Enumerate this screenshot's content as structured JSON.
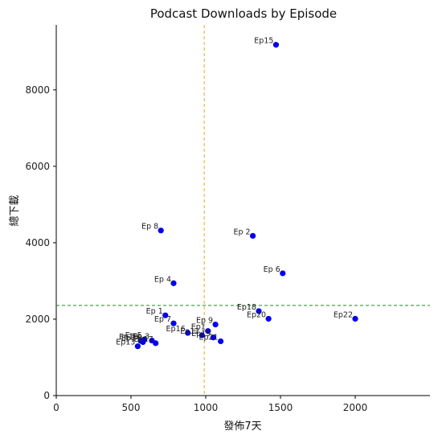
{
  "chart_data": {
    "type": "scatter",
    "title": "Podcast Downloads by Episode",
    "xlabel": "發佈7天",
    "ylabel": "總下載",
    "xlim": [
      0,
      2500
    ],
    "ylim": [
      0,
      9700
    ],
    "xticks": [
      0,
      500,
      1000,
      1500,
      2000
    ],
    "yticks": [
      0,
      2000,
      4000,
      6000,
      8000
    ],
    "marker_color": "#0000ee",
    "vline": {
      "x": 990,
      "color": "#f0a020",
      "style": "dashed"
    },
    "hline": {
      "y": 2360,
      "color": "#228B22",
      "style": "dashed"
    },
    "points": [
      {
        "label": "Ep15",
        "x": 1470,
        "y": 9180
      },
      {
        "label": "Ep 8",
        "x": 700,
        "y": 4320
      },
      {
        "label": "Ep 2",
        "x": 1315,
        "y": 4180
      },
      {
        "label": "Ep 6",
        "x": 1515,
        "y": 3200
      },
      {
        "label": "Ep 4",
        "x": 785,
        "y": 2940
      },
      {
        "label": "Ep18",
        "x": 1355,
        "y": 2210
      },
      {
        "label": "Ep 1",
        "x": 730,
        "y": 2100
      },
      {
        "label": "Ep20",
        "x": 1420,
        "y": 2010
      },
      {
        "label": "Ep22",
        "x": 2000,
        "y": 2010
      },
      {
        "label": "Ep 7",
        "x": 785,
        "y": 1890
      },
      {
        "label": "Ep 9",
        "x": 1065,
        "y": 1860
      },
      {
        "label": "Ep1",
        "x": 1015,
        "y": 1690
      },
      {
        "label": "Ep16",
        "x": 880,
        "y": 1640
      },
      {
        "label": "Ep12",
        "x": 975,
        "y": 1580
      },
      {
        "label": "Ep19",
        "x": 1050,
        "y": 1520
      },
      {
        "label": "Ep21",
        "x": 1100,
        "y": 1420
      },
      {
        "label": "Ep 3",
        "x": 640,
        "y": 1440
      },
      {
        "label": "Ep 5",
        "x": 590,
        "y": 1470
      },
      {
        "label": "Ep10",
        "x": 565,
        "y": 1430
      },
      {
        "label": "Ep17",
        "x": 665,
        "y": 1370
      },
      {
        "label": "Ep14",
        "x": 580,
        "y": 1400
      },
      {
        "label": "Ep13",
        "x": 545,
        "y": 1290
      }
    ]
  }
}
